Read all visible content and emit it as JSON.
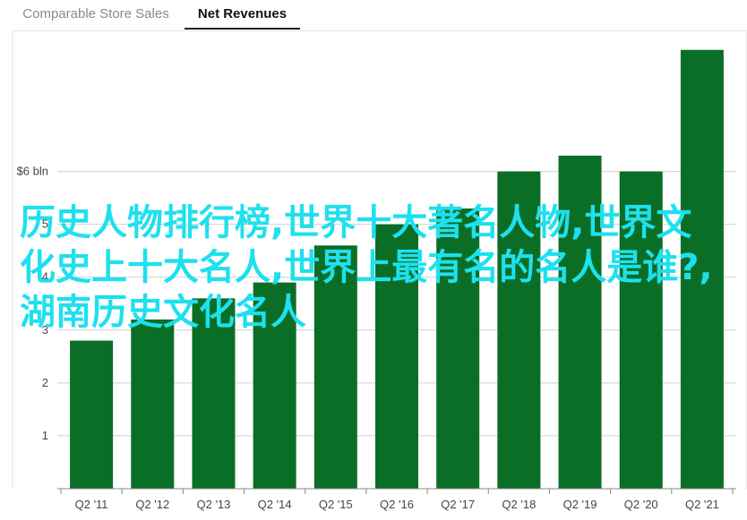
{
  "tabs": [
    {
      "label": "Comparable Store Sales",
      "active": false
    },
    {
      "label": "Net Revenues",
      "active": true
    }
  ],
  "colors": {
    "bar": "#0b6e26",
    "grid": "#d0d0d0",
    "axis": "#888888",
    "overlay_text": "#1ee0ee"
  },
  "chart_data": {
    "type": "bar",
    "categories": [
      "Q2 '11",
      "Q2 '12",
      "Q2 '13",
      "Q2 '14",
      "Q2 '15",
      "Q2 '16",
      "Q2 '17",
      "Q2 '18",
      "Q2 '19",
      "Q2 '20",
      "Q2 '21"
    ],
    "values": [
      2.8,
      3.2,
      3.6,
      3.9,
      4.6,
      5.0,
      5.3,
      6.0,
      6.3,
      6.0,
      8.3
    ],
    "yticks": [
      1,
      2,
      3,
      4,
      5,
      6
    ],
    "ytick_labels": [
      "1",
      "2",
      "3",
      "4",
      "5",
      "$6 bln"
    ],
    "ylim": [
      0,
      8.6
    ],
    "grid": true,
    "title": "",
    "xlabel": "",
    "ylabel": ""
  },
  "overlay_text": "历史人物排行榜,世界十大著名人物,世界文化史上十大名人,世界上最有名的名人是谁?,湖南历史文化名人"
}
